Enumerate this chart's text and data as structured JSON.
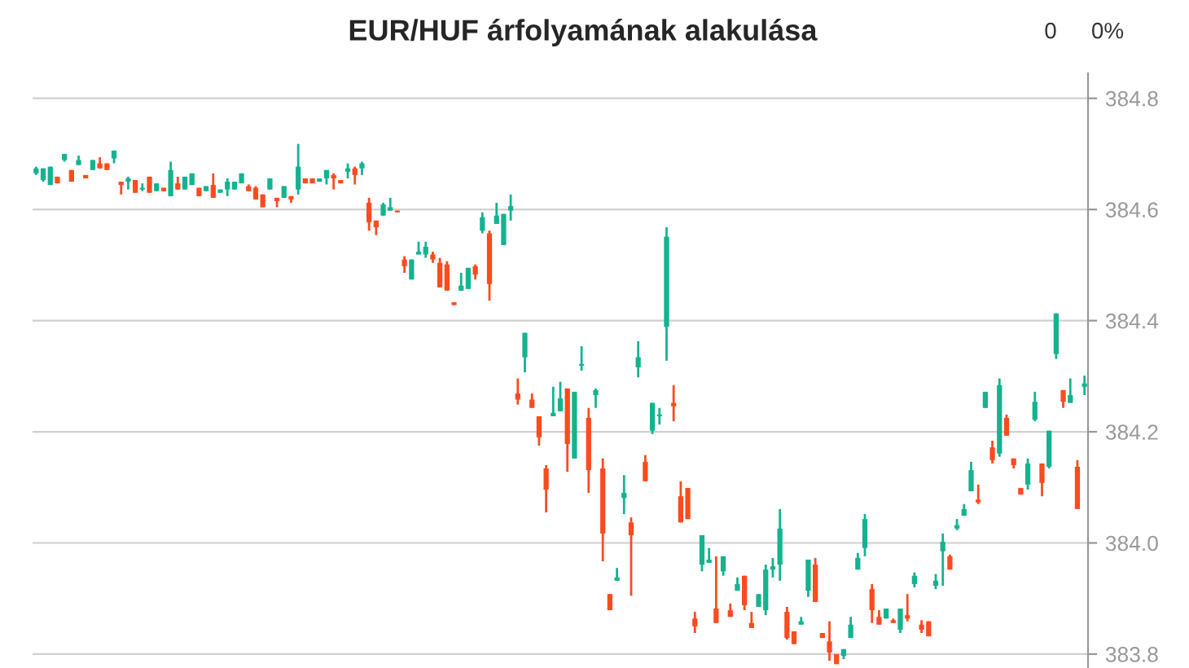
{
  "chart_data": {
    "type": "candlestick",
    "title": "EUR/HUF árfolyamának alakulása",
    "annotations": [
      "0",
      "0%"
    ],
    "categories": [
      null,
      null,
      null,
      null,
      null,
      null,
      null,
      null,
      null,
      null,
      null,
      null,
      null,
      null,
      null,
      null,
      null,
      null,
      null,
      null,
      null,
      null,
      null,
      null,
      null,
      null,
      null,
      null,
      null,
      null,
      null,
      null,
      null,
      null,
      null,
      null,
      null,
      null,
      null,
      null,
      null,
      null,
      null,
      null,
      null,
      null,
      null,
      null,
      null,
      null,
      null,
      null,
      null,
      null,
      null,
      null,
      null,
      null,
      null,
      null,
      null,
      null,
      null,
      null,
      null,
      null,
      null,
      null,
      null,
      null,
      null,
      null,
      null,
      null,
      null,
      null,
      null,
      null,
      null,
      null,
      null,
      null,
      null,
      null,
      null,
      null,
      null,
      null,
      null,
      null,
      null,
      null,
      null,
      null,
      null,
      null,
      null,
      null,
      null,
      null,
      null,
      null,
      null,
      null,
      null,
      null,
      null,
      null,
      null,
      null,
      null,
      null,
      null,
      null,
      null,
      null,
      null,
      null,
      null,
      null,
      null,
      null,
      null,
      null,
      null,
      null,
      null,
      null,
      null,
      null,
      null,
      null,
      null,
      null,
      null,
      null,
      null,
      null,
      null,
      null,
      null,
      null,
      null,
      null,
      null,
      null,
      null,
      null,
      null
    ],
    "colors": [
      "#14b38f",
      "#14b38f",
      "#14b38f",
      "#fb4b1f",
      "#14b38f",
      "#fb4b1f",
      "#14b38f",
      "#fb4b1f",
      "#14b38f",
      "#fb4b1f",
      "#fb4b1f",
      "#14b38f",
      "#fb4b1f",
      "#14b38f",
      "#fb4b1f",
      "#14b38f",
      "#fb4b1f",
      "#14b38f",
      "#fb4b1f",
      "#14b38f",
      "#fb4b1f",
      "#14b38f",
      "#14b38f",
      "#fb4b1f",
      "#14b38f",
      "#fb4b1f",
      "#14b38f",
      "#14b38f",
      "#14b38f",
      "#14b38f",
      "#fb4b1f",
      "#fb4b1f",
      "#fb4b1f",
      "#14b38f",
      "#fb4b1f",
      "#14b38f",
      "#fb4b1f",
      "#14b38f",
      "#fb4b1f",
      "#fb4b1f",
      "#14b38f",
      "#14b38f",
      "#fb4b1f",
      "#fb4b1f",
      "#14b38f",
      "#fb4b1f",
      "#14b38f",
      "#fb4b1f",
      "#fb4b1f",
      "#14b38f",
      "#14b38f",
      "#fb4b1f",
      "#fb4b1f",
      "#14b38f",
      "#14b38f",
      "#14b38f",
      "#fb4b1f",
      "#fb4b1f",
      "#fb4b1f",
      "#fb4b1f",
      "#14b38f",
      "#14b38f",
      "#fb4b1f",
      "#14b38f",
      "#fb4b1f",
      "#14b38f",
      "#14b38f",
      "#14b38f",
      "#fb4b1f",
      "#14b38f",
      "#fb4b1f",
      "#fb4b1f",
      "#fb4b1f",
      "#14b38f",
      "#14b38f",
      "#fb4b1f",
      "#14b38f",
      "#14b38f",
      "#fb4b1f",
      "#14b38f",
      "#fb4b1f",
      "#fb4b1f",
      "#14b38f",
      "#14b38f",
      "#fb4b1f",
      "#14b38f",
      "#fb4b1f",
      "#14b38f",
      "#14b38f",
      "#14b38f",
      "#fb4b1f",
      "#fb4b1f",
      "#fb4b1f",
      "#fb4b1f",
      "#14b38f",
      "#14b38f",
      "#fb4b1f",
      "#14b38f",
      "#fb4b1f",
      "#14b38f",
      "#fb4b1f",
      "#fb4b1f",
      "#14b38f",
      "#14b38f",
      "#14b38f",
      "#14b38f",
      "#fb4b1f",
      "#fb4b1f",
      "#14b38f",
      "#14b38f",
      "#fb4b1f",
      "#fb4b1f",
      "#fb4b1f",
      "#fb4b1f",
      "#14b38f",
      "#14b38f",
      "#14b38f",
      "#14b38f",
      "#fb4b1f",
      "#fb4b1f",
      "#14b38f",
      "#fb4b1f",
      "#14b38f",
      "#fb4b1f",
      "#14b38f",
      "#fb4b1f",
      "#fb4b1f",
      "#14b38f",
      "#14b38f",
      "#fb4b1f",
      "#14b38f",
      "#14b38f",
      "#14b38f",
      "#fb4b1f",
      "#14b38f",
      "#fb4b1f",
      "#14b38f",
      "#fb4b1f",
      "#fb4b1f",
      "#fb4b1f",
      "#14b38f",
      "#14b38f",
      "#fb4b1f",
      "#14b38f",
      "#14b38f",
      "#fb4b1f",
      "#14b38f",
      "#fb4b1f",
      "#14b38f"
    ],
    "ylim": [
      383.775,
      384.845
    ],
    "yticks": [
      383.8,
      {
        "value": 384.0,
        "label": "384.0"
      },
      384.2,
      384.4,
      384.6,
      384.8
    ],
    "grid": "y",
    "tick_labels": "y",
    "ohlc": [
      [
        384.665,
        384.677,
        384.662,
        384.674
      ],
      [
        384.653,
        384.674,
        384.65,
        384.674
      ],
      [
        384.644,
        384.677,
        384.644,
        384.677
      ],
      [
        384.659,
        384.659,
        384.647,
        384.647
      ],
      [
        384.689,
        384.7,
        384.686,
        384.7
      ],
      [
        384.671,
        384.671,
        384.65,
        384.65
      ],
      [
        384.68,
        384.697,
        384.68,
        384.689
      ],
      [
        384.662,
        384.662,
        384.656,
        384.656
      ],
      [
        384.671,
        384.689,
        384.671,
        384.689
      ],
      [
        384.683,
        384.694,
        384.674,
        384.674
      ],
      [
        384.683,
        384.683,
        384.671,
        384.671
      ],
      [
        384.692,
        384.706,
        384.683,
        384.706
      ],
      [
        384.65,
        384.65,
        384.627,
        384.644
      ],
      [
        384.65,
        384.659,
        384.636,
        384.656
      ],
      [
        384.653,
        384.653,
        384.63,
        384.63
      ],
      [
        384.636,
        384.647,
        384.633,
        384.639
      ],
      [
        384.659,
        384.659,
        384.63,
        384.63
      ],
      [
        384.633,
        384.647,
        384.633,
        384.647
      ],
      [
        384.639,
        384.639,
        384.633,
        384.633
      ],
      [
        384.624,
        384.686,
        384.624,
        384.671
      ],
      [
        384.647,
        384.659,
        384.636,
        384.636
      ],
      [
        384.636,
        384.659,
        384.636,
        384.659
      ],
      [
        384.644,
        384.665,
        384.644,
        384.665
      ],
      [
        384.639,
        384.639,
        384.624,
        384.624
      ],
      [
        384.633,
        384.642,
        384.633,
        384.642
      ],
      [
        384.644,
        384.665,
        384.621,
        384.621
      ],
      [
        384.63,
        384.636,
        384.63,
        384.636
      ],
      [
        384.636,
        384.656,
        384.624,
        384.65
      ],
      [
        384.636,
        384.65,
        384.636,
        384.65
      ],
      [
        384.647,
        384.665,
        384.647,
        384.665
      ],
      [
        384.642,
        384.645,
        384.633,
        384.633
      ],
      [
        384.639,
        384.642,
        384.618,
        384.618
      ],
      [
        384.627,
        384.627,
        384.604,
        384.604
      ],
      [
        384.636,
        384.656,
        384.636,
        384.656
      ],
      [
        384.621,
        384.621,
        384.604,
        384.615
      ],
      [
        384.621,
        384.642,
        384.621,
        384.642
      ],
      [
        384.624,
        384.624,
        384.612,
        384.618
      ],
      [
        384.636,
        384.718,
        384.627,
        384.677
      ],
      [
        384.656,
        384.656,
        384.647,
        384.647
      ],
      [
        384.656,
        384.656,
        384.647,
        384.647
      ],
      [
        384.65,
        384.656,
        384.65,
        384.656
      ],
      [
        384.656,
        384.671,
        384.645,
        384.671
      ],
      [
        384.662,
        384.665,
        384.636,
        384.656
      ],
      [
        384.653,
        384.653,
        384.647,
        384.647
      ],
      [
        384.668,
        384.683,
        384.656,
        384.674
      ],
      [
        384.674,
        384.677,
        384.645,
        384.662
      ],
      [
        384.674,
        384.686,
        384.662,
        384.683
      ],
      [
        384.612,
        384.621,
        384.562,
        384.577
      ],
      [
        384.58,
        384.58,
        384.554,
        384.568
      ],
      [
        384.589,
        384.612,
        384.589,
        384.609
      ],
      [
        384.598,
        384.621,
        384.598,
        384.604
      ],
      [
        384.598,
        384.598,
        384.595,
        384.595
      ],
      [
        384.51,
        384.516,
        384.486,
        384.498
      ],
      [
        384.474,
        384.51,
        384.474,
        384.51
      ],
      [
        384.519,
        384.542,
        384.519,
        384.524
      ],
      [
        384.519,
        384.542,
        384.513,
        384.533
      ],
      [
        384.519,
        384.524,
        384.504,
        384.51
      ],
      [
        384.504,
        384.513,
        384.46,
        384.46
      ],
      [
        384.501,
        384.507,
        384.454,
        384.454
      ],
      [
        384.433,
        384.433,
        384.428,
        384.428
      ],
      [
        384.454,
        384.486,
        384.454,
        384.463
      ],
      [
        384.457,
        384.495,
        384.457,
        384.495
      ],
      [
        384.498,
        384.501,
        384.474,
        384.483
      ],
      [
        384.562,
        384.595,
        384.557,
        384.586
      ],
      [
        384.557,
        384.562,
        384.436,
        384.466
      ],
      [
        384.574,
        384.612,
        384.574,
        384.589
      ],
      [
        384.536,
        384.592,
        384.536,
        384.592
      ],
      [
        384.598,
        384.627,
        384.58,
        384.606
      ],
      [
        384.269,
        384.296,
        384.249,
        384.258
      ],
      [
        384.334,
        384.378,
        384.307,
        384.378
      ],
      [
        384.258,
        384.269,
        384.243,
        384.243
      ],
      [
        384.228,
        384.228,
        384.175,
        384.19
      ],
      [
        384.134,
        384.14,
        384.055,
        384.096
      ],
      [
        384.228,
        384.281,
        384.228,
        384.234
      ],
      [
        384.237,
        384.29,
        384.237,
        384.26
      ],
      [
        384.278,
        384.278,
        384.128,
        384.178
      ],
      [
        384.152,
        384.272,
        384.152,
        384.272
      ],
      [
        384.319,
        384.354,
        384.31,
        384.322
      ],
      [
        384.225,
        384.243,
        384.09,
        384.131
      ],
      [
        384.266,
        384.278,
        384.243,
        384.275
      ],
      [
        384.134,
        384.152,
        383.967,
        384.017
      ],
      [
        383.908,
        383.908,
        383.879,
        383.879
      ],
      [
        383.932,
        383.955,
        383.932,
        383.938
      ],
      [
        384.081,
        384.122,
        384.052,
        384.09
      ],
      [
        384.037,
        384.046,
        383.905,
        384.014
      ],
      [
        384.316,
        384.363,
        384.298,
        384.334
      ],
      [
        384.146,
        384.158,
        384.111,
        384.111
      ],
      [
        384.202,
        384.252,
        384.196,
        384.252
      ],
      [
        384.228,
        384.243,
        384.213,
        384.231
      ],
      [
        384.389,
        384.568,
        384.328,
        384.551
      ],
      [
        384.252,
        384.284,
        384.219,
        384.246
      ],
      [
        384.084,
        384.111,
        384.037,
        384.037
      ],
      [
        384.099,
        384.099,
        384.043,
        384.043
      ],
      [
        383.864,
        383.876,
        383.838,
        383.85
      ],
      [
        383.961,
        384.014,
        383.949,
        384.014
      ],
      [
        383.964,
        383.991,
        383.964,
        383.97
      ],
      [
        383.882,
        383.976,
        383.856,
        383.856
      ],
      [
        383.949,
        383.976,
        383.941,
        383.976
      ],
      [
        383.879,
        383.891,
        383.867,
        383.867
      ],
      [
        383.914,
        383.938,
        383.914,
        383.926
      ],
      [
        383.941,
        383.941,
        383.879,
        383.888
      ],
      [
        383.856,
        383.876,
        383.847,
        383.847
      ],
      [
        383.885,
        383.908,
        383.885,
        383.908
      ],
      [
        383.879,
        383.961,
        383.87,
        383.952
      ],
      [
        383.952,
        383.973,
        383.938,
        383.958
      ],
      [
        383.961,
        384.061,
        383.932,
        384.026
      ],
      [
        383.876,
        383.885,
        383.826,
        383.829
      ],
      [
        383.841,
        383.841,
        383.818,
        383.818
      ],
      [
        383.853,
        383.867,
        383.853,
        383.859
      ],
      [
        383.914,
        383.97,
        383.903,
        383.97
      ],
      [
        383.961,
        383.973,
        383.894,
        383.894
      ],
      [
        383.838,
        383.838,
        383.829,
        383.829
      ],
      [
        383.823,
        383.859,
        383.788,
        383.803
      ],
      [
        383.8,
        383.8,
        383.782,
        383.782
      ],
      [
        383.797,
        383.809,
        383.791,
        383.809
      ],
      [
        383.829,
        383.867,
        383.829,
        383.853
      ],
      [
        383.952,
        383.982,
        383.952,
        383.973
      ],
      [
        383.991,
        384.052,
        383.976,
        384.043
      ],
      [
        383.917,
        383.926,
        383.856,
        383.879
      ],
      [
        383.867,
        383.879,
        383.853,
        383.853
      ],
      [
        383.864,
        383.882,
        383.864,
        383.882
      ],
      [
        383.861,
        383.864,
        383.856,
        383.856
      ],
      [
        383.844,
        383.882,
        383.838,
        383.882
      ],
      [
        383.87,
        383.908,
        383.859,
        383.864
      ],
      [
        383.926,
        383.947,
        383.92,
        383.941
      ],
      [
        383.853,
        383.861,
        383.838,
        383.844
      ],
      [
        383.859,
        383.859,
        383.832,
        383.832
      ],
      [
        383.923,
        383.944,
        383.917,
        383.932
      ],
      [
        383.985,
        384.017,
        383.923,
        384.002
      ],
      [
        383.976,
        383.979,
        383.952,
        383.952
      ],
      [
        384.026,
        384.043,
        384.023,
        384.032
      ],
      [
        384.049,
        384.07,
        384.049,
        384.061
      ],
      [
        384.093,
        384.146,
        384.093,
        384.131
      ],
      [
        384.078,
        384.105,
        384.07,
        384.073
      ],
      [
        384.243,
        384.272,
        384.243,
        384.272
      ],
      [
        384.172,
        384.184,
        384.143,
        384.149
      ],
      [
        384.161,
        384.296,
        384.155,
        384.284
      ],
      [
        384.225,
        384.231,
        384.193,
        384.193
      ],
      [
        384.152,
        384.152,
        384.134,
        384.14
      ],
      [
        384.099,
        384.099,
        384.087,
        384.087
      ],
      [
        384.105,
        384.152,
        384.096,
        384.143
      ],
      [
        384.222,
        384.272,
        384.219,
        384.254
      ],
      [
        384.143,
        384.143,
        384.084,
        384.108
      ],
      [
        384.137,
        384.202,
        384.134,
        384.202
      ],
      [
        384.34,
        384.413,
        384.331,
        384.413
      ],
      [
        384.275,
        384.275,
        384.243,
        384.254
      ],
      [
        384.252,
        384.296,
        384.252,
        384.266
      ],
      [
        384.137,
        384.149,
        384.061,
        384.061
      ],
      [
        384.281,
        384.301,
        384.266,
        384.287
      ]
    ]
  }
}
